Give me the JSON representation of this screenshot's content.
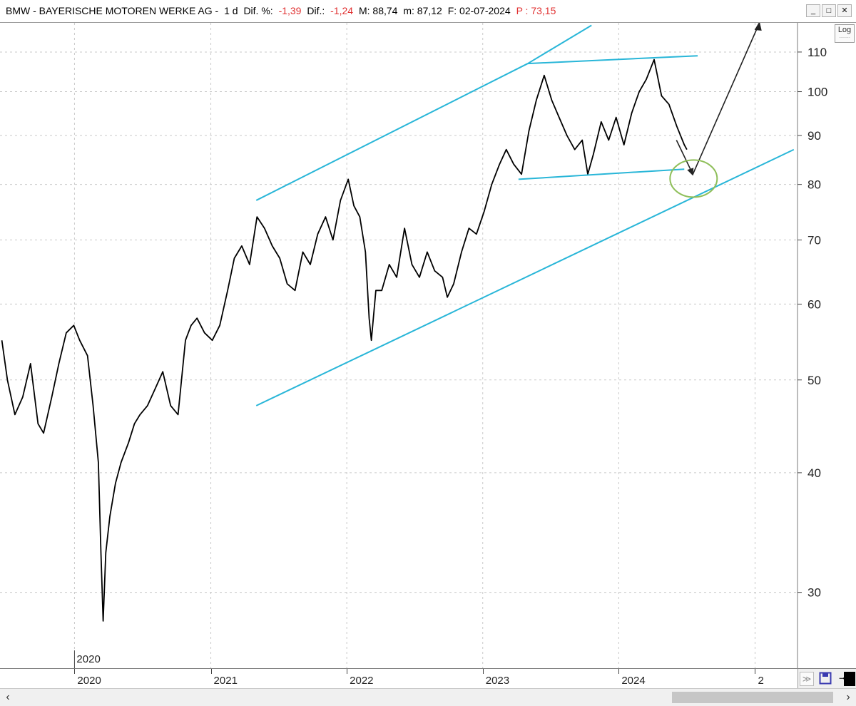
{
  "header": {
    "security": "BMW - BAYERISCHE MOTOREN WERKE AG -",
    "period": "1 d",
    "dif_pct_label": "Dif. %:",
    "dif_pct_value": "-1,39",
    "dif_label": "Dif.:",
    "dif_value": "-1,24",
    "max_label": "M: 88,74",
    "min_label": "m: 87,12",
    "date_label": "F: 02-07-2024",
    "p_label": "P : 73,15"
  },
  "window_buttons": {
    "minimize": "_",
    "restore": "□",
    "close": "✕"
  },
  "log_button": {
    "label": "Log",
    "sublabel": "........"
  },
  "in_chart_year_label": "2020",
  "time_axis": {
    "years": [
      "2020",
      "2021",
      "2022",
      "2023",
      "2024",
      "2"
    ]
  },
  "colors": {
    "price": "#000000",
    "trendline": "#29b6d8",
    "circle": "#8fbf5a",
    "grid": "#c9c9c9",
    "arrow": "#222222"
  },
  "chart_data": {
    "type": "line",
    "title": "BMW - BAYERISCHE MOTOREN WERKE AG - 1 d",
    "scale": "log",
    "ylim": [
      25,
      118
    ],
    "yticks": [
      30,
      40,
      50,
      60,
      70,
      80,
      90,
      100,
      110
    ],
    "xlim": [
      "2019-06-15",
      "2025-04-25"
    ],
    "grid": true,
    "series": [
      {
        "x": [
          "2019-06-20",
          "2019-07-05",
          "2019-07-25",
          "2019-08-15",
          "2019-09-05",
          "2019-09-25",
          "2019-10-10",
          "2019-11-01",
          "2019-11-20",
          "2019-12-10",
          "2019-12-30",
          "2020-01-15",
          "2020-02-05",
          "2020-02-20",
          "2020-03-05",
          "2020-03-12",
          "2020-03-18",
          "2020-03-25",
          "2020-04-05",
          "2020-04-20",
          "2020-05-05",
          "2020-05-25",
          "2020-06-10",
          "2020-06-25",
          "2020-07-15",
          "2020-08-05",
          "2020-08-25",
          "2020-09-15",
          "2020-10-05",
          "2020-10-25",
          "2020-11-09",
          "2020-11-25",
          "2020-12-15",
          "2021-01-05",
          "2021-01-25",
          "2021-02-15",
          "2021-03-05",
          "2021-03-25",
          "2021-04-15",
          "2021-05-05",
          "2021-05-25",
          "2021-06-15",
          "2021-07-05",
          "2021-07-25",
          "2021-08-15",
          "2021-09-05",
          "2021-09-25",
          "2021-10-15",
          "2021-11-05",
          "2021-11-25",
          "2021-12-15",
          "2022-01-05",
          "2022-01-20",
          "2022-02-05",
          "2022-02-20",
          "2022-03-02",
          "2022-03-08",
          "2022-03-20",
          "2022-04-05",
          "2022-04-25",
          "2022-05-15",
          "2022-06-05",
          "2022-06-25",
          "2022-07-15",
          "2022-08-05",
          "2022-08-25",
          "2022-09-15",
          "2022-09-28",
          "2022-10-15",
          "2022-11-05",
          "2022-11-25",
          "2022-12-15",
          "2023-01-05",
          "2023-01-25",
          "2023-02-15",
          "2023-03-05",
          "2023-03-25",
          "2023-04-15",
          "2023-05-05",
          "2023-05-25",
          "2023-06-15",
          "2023-07-05",
          "2023-07-25",
          "2023-08-15",
          "2023-09-05",
          "2023-09-25",
          "2023-10-10",
          "2023-10-25",
          "2023-11-15",
          "2023-12-05",
          "2023-12-25",
          "2024-01-15",
          "2024-02-05",
          "2024-02-25",
          "2024-03-15",
          "2024-04-05",
          "2024-04-25",
          "2024-05-15",
          "2024-06-05",
          "2024-06-25",
          "2024-07-02"
        ],
        "values": [
          55,
          50,
          46,
          48,
          52,
          45,
          44,
          48,
          52,
          56,
          57,
          55,
          53,
          47,
          41,
          33,
          28,
          33,
          36,
          39,
          41,
          43,
          45,
          46,
          47,
          49,
          51,
          47,
          46,
          55,
          57,
          58,
          56,
          55,
          57,
          62,
          67,
          69,
          66,
          74,
          72,
          69,
          67,
          63,
          62,
          68,
          66,
          71,
          74,
          70,
          77,
          81,
          76,
          74,
          68,
          58,
          55,
          62,
          62,
          66,
          64,
          72,
          66,
          64,
          68,
          65,
          64,
          61,
          63,
          68,
          72,
          71,
          75,
          80,
          84,
          87,
          84,
          82,
          91,
          98,
          104,
          98,
          94,
          90,
          87,
          89,
          82,
          86,
          93,
          89,
          94,
          88,
          95,
          100,
          103,
          108,
          99,
          97,
          92,
          88,
          87
        ]
      }
    ],
    "annotations": {
      "channel_upper": {
        "x": [
          "2021-05-03",
          "2023-05-02"
        ],
        "y": [
          77,
          107
        ]
      },
      "channel_upper_ext": {
        "x": [
          "2023-05-02",
          "2023-10-20"
        ],
        "y": [
          107,
          117.3
        ]
      },
      "channel_lower": {
        "x": [
          "2021-05-03",
          "2025-04-15"
        ],
        "y": [
          47,
          87
        ]
      },
      "top_line": {
        "x": [
          "2023-05-02",
          "2024-07-31"
        ],
        "y": [
          107,
          109
        ]
      },
      "bottom_line": {
        "x": [
          "2023-04-07",
          "2024-06-25"
        ],
        "y": [
          81,
          83
        ]
      },
      "projection": {
        "x": [
          "2024-06-04",
          "2024-07-18",
          "2025-01-13"
        ],
        "y": [
          89,
          82,
          118
        ]
      },
      "circle_center": {
        "x": "2024-07-20",
        "y": 81
      }
    }
  }
}
